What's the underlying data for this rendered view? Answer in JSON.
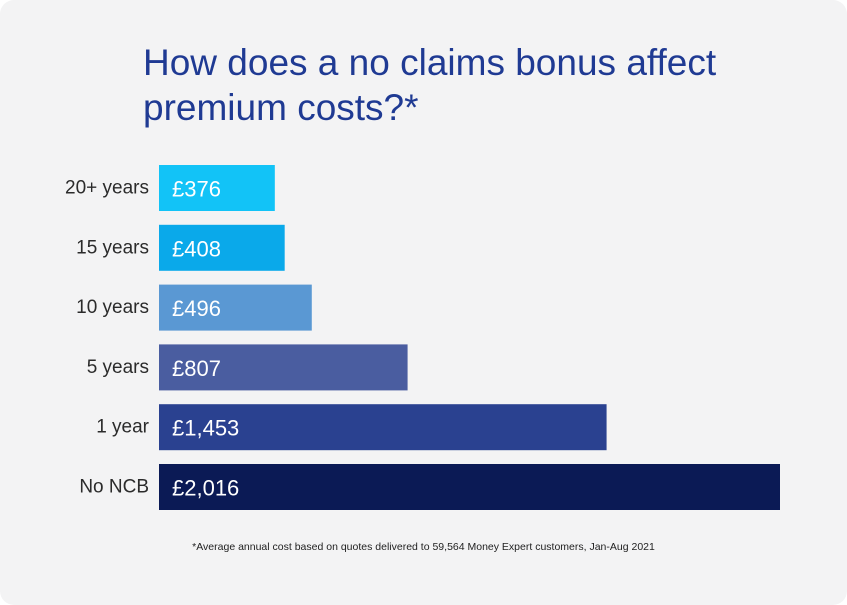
{
  "title": "How does a no claims bonus affect premium costs?*",
  "footnote": "*Average annual cost based on quotes delivered to 59,564 Money Expert customers, Jan-Aug 2021",
  "chart_data": {
    "type": "bar",
    "orientation": "horizontal",
    "categories": [
      "20+ years",
      "15 years",
      "10 years",
      "5 years",
      "1 year",
      "No NCB"
    ],
    "values": [
      376,
      408,
      496,
      807,
      1453,
      2016
    ],
    "value_labels": [
      "£376",
      "£408",
      "£496",
      "£807",
      "£1,453",
      "£2,016"
    ],
    "colors": [
      "#12c3f7",
      "#0aa9ea",
      "#5a98d3",
      "#4a5da0",
      "#2a4190",
      "#0b1a55"
    ],
    "xlim": [
      0,
      2016
    ],
    "grid": false,
    "legend": "none"
  }
}
